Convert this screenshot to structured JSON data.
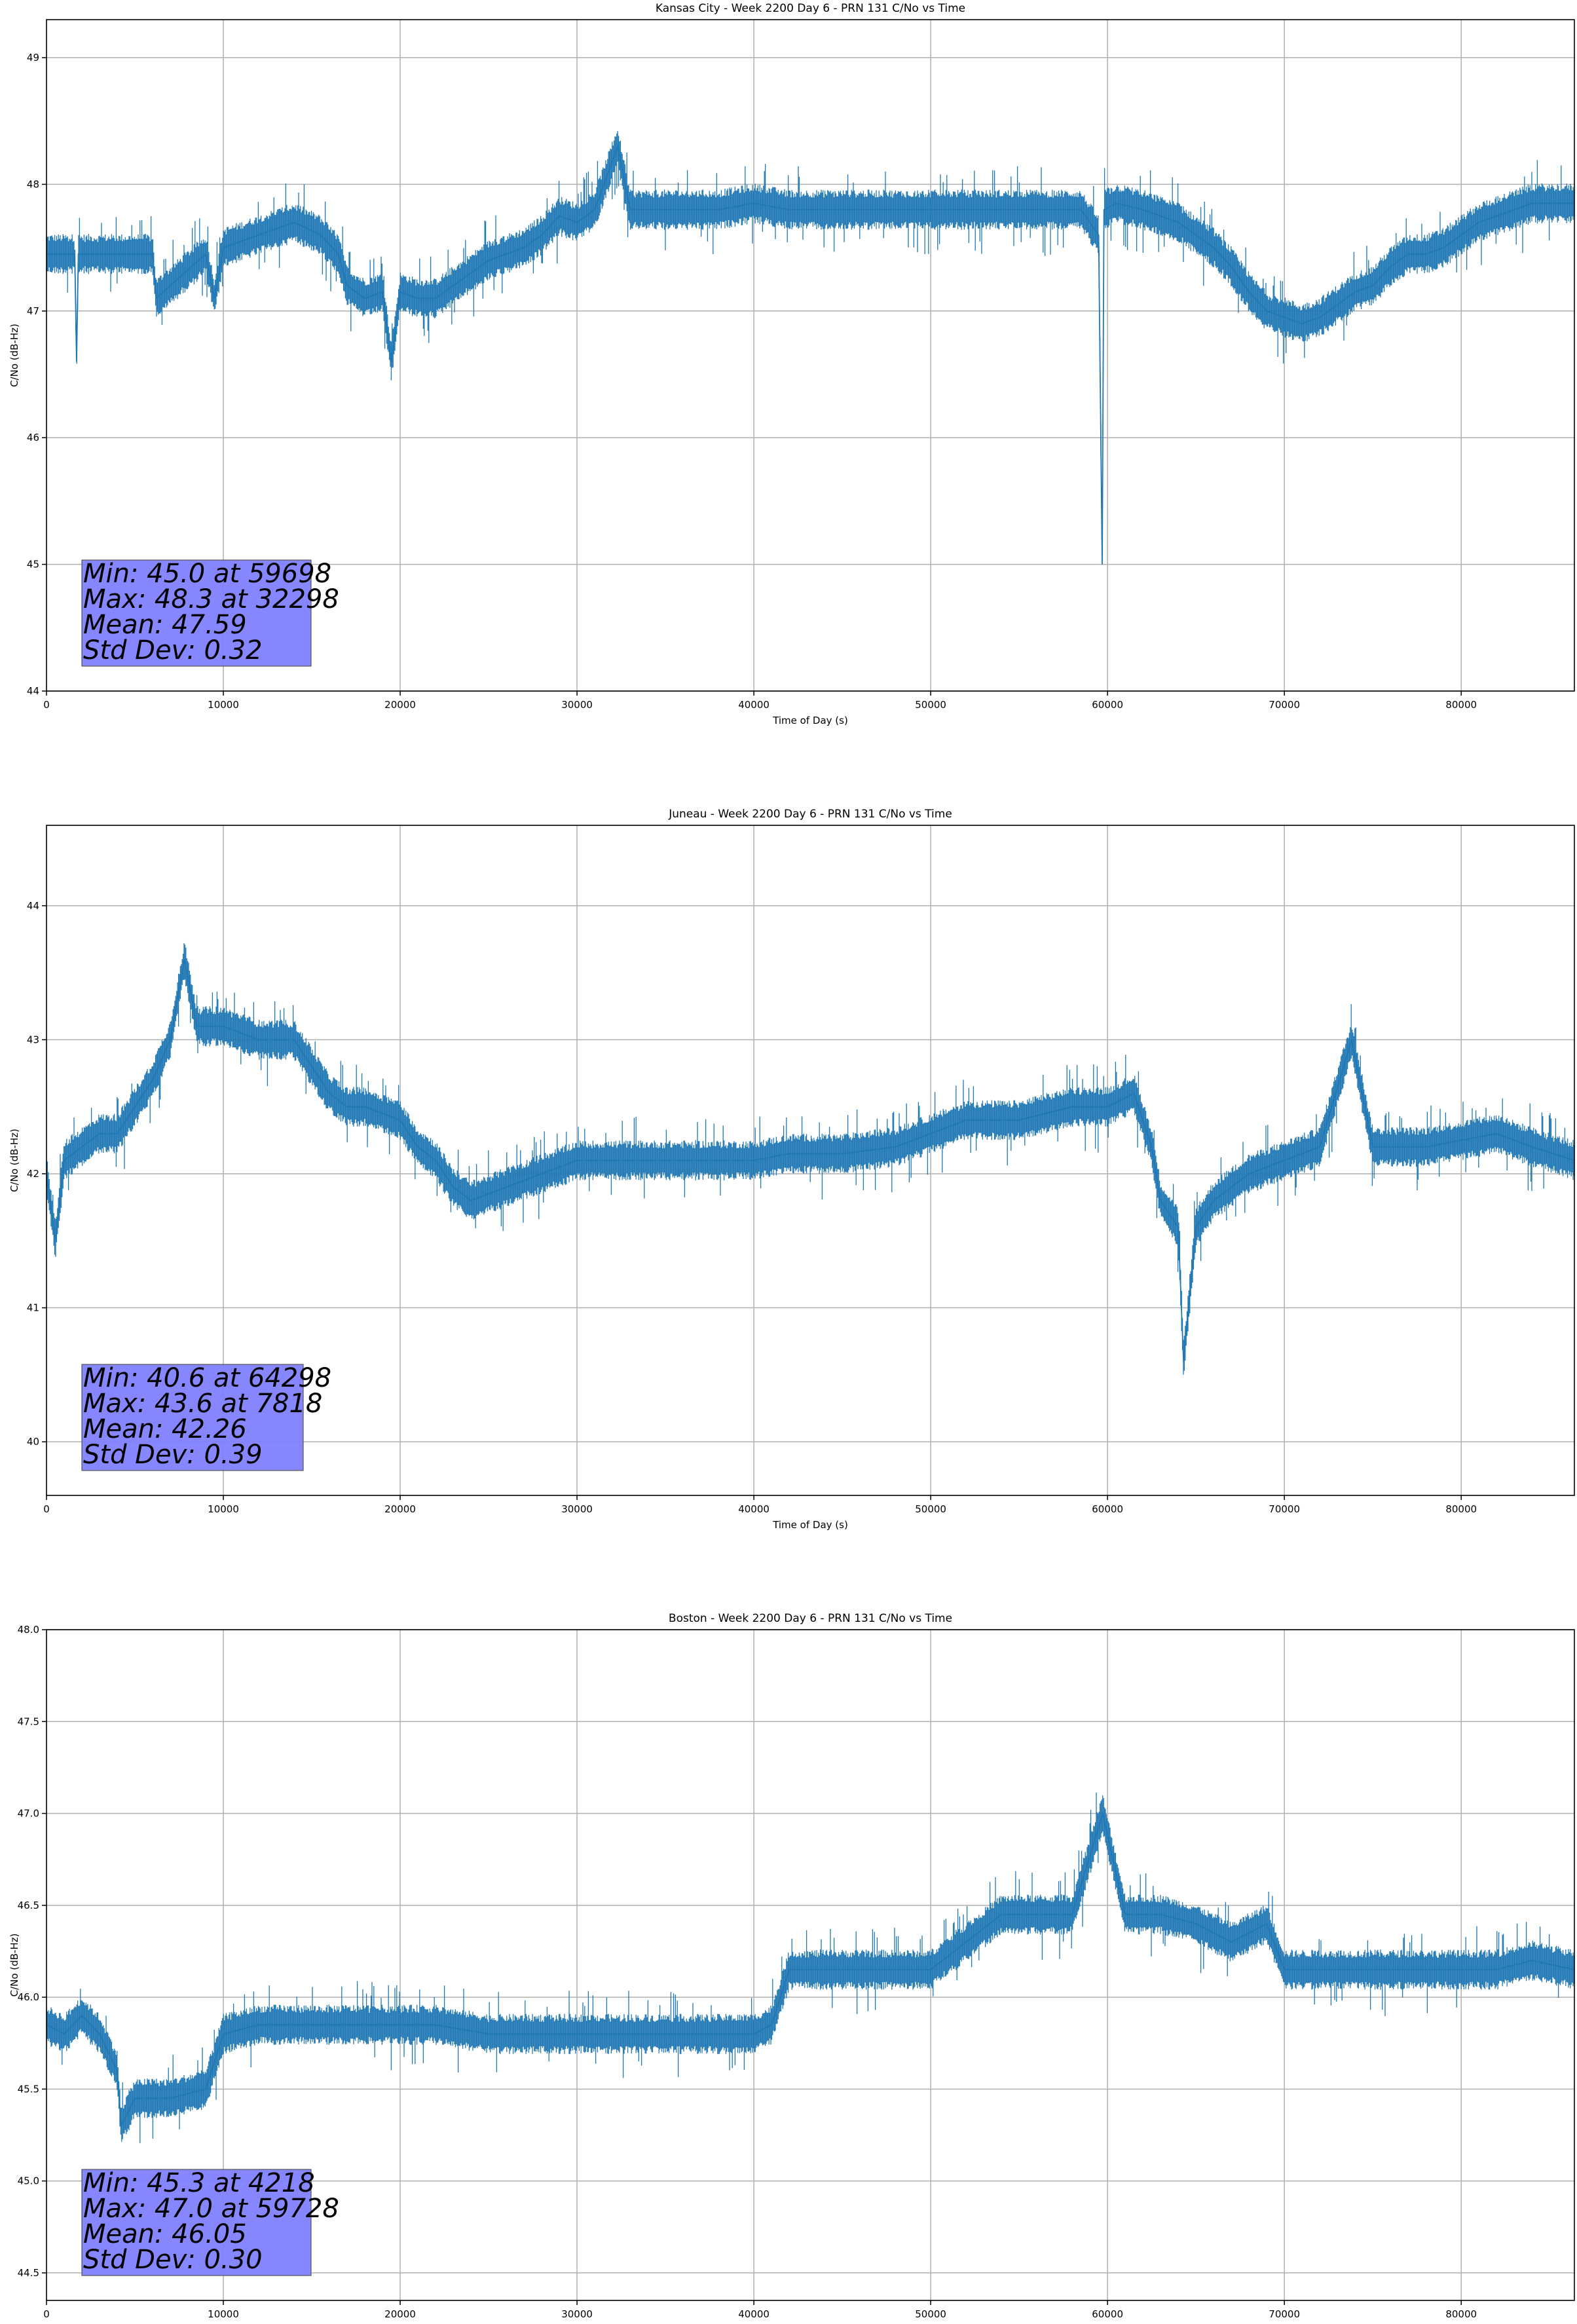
{
  "chart_data": [
    {
      "type": "line",
      "title": "Kansas City - Week 2200 Day 6 - PRN 131 C/No vs Time",
      "xlabel": "Time of Day (s)",
      "ylabel": "C/No (dB-Hz)",
      "xlim": [
        0,
        86400
      ],
      "ylim": [
        44,
        49.3
      ],
      "xticks": [
        "0",
        "10000",
        "20000",
        "30000",
        "40000",
        "50000",
        "60000",
        "70000",
        "80000"
      ],
      "xtick_values": [
        0,
        10000,
        20000,
        30000,
        40000,
        50000,
        60000,
        70000,
        80000
      ],
      "yticks": [
        "44",
        "45",
        "46",
        "47",
        "48",
        "49"
      ],
      "ytick_values": [
        44,
        45,
        46,
        47,
        48,
        49
      ],
      "grid": true,
      "line_color": "#1f77b4",
      "series": [
        {
          "x": [
            0,
            1600,
            1700,
            1800,
            3000,
            6000,
            6200,
            9000,
            9500,
            10000,
            12000,
            14000,
            15500,
            16500,
            17000,
            18000,
            19000,
            19500,
            20000,
            21000,
            22000,
            23000,
            24000,
            25000,
            26000,
            27000,
            28000,
            29000,
            30000,
            31000,
            32300,
            33000,
            35000,
            38000,
            40000,
            42000,
            45000,
            48000,
            50000,
            53000,
            55000,
            57000,
            58500,
            59500,
            59700,
            59800,
            60500,
            62000,
            64000,
            65000,
            66000,
            67000,
            68000,
            69000,
            70000,
            71000,
            72000,
            73000,
            74000,
            75000,
            76000,
            77000,
            78000,
            79000,
            80000,
            81000,
            82000,
            83000,
            84000,
            85000,
            86400
          ],
          "y": [
            47.45,
            47.45,
            46.6,
            47.45,
            47.45,
            47.45,
            47.1,
            47.45,
            47.1,
            47.5,
            47.6,
            47.7,
            47.6,
            47.45,
            47.2,
            47.1,
            47.15,
            46.6,
            47.15,
            47.1,
            47.1,
            47.2,
            47.3,
            47.4,
            47.45,
            47.5,
            47.6,
            47.75,
            47.7,
            47.8,
            48.3,
            47.8,
            47.8,
            47.8,
            47.85,
            47.8,
            47.8,
            47.8,
            47.8,
            47.8,
            47.8,
            47.8,
            47.8,
            47.6,
            45.0,
            47.8,
            47.85,
            47.8,
            47.7,
            47.6,
            47.5,
            47.35,
            47.15,
            47.0,
            46.95,
            46.9,
            46.95,
            47.05,
            47.15,
            47.2,
            47.35,
            47.45,
            47.45,
            47.5,
            47.6,
            47.7,
            47.75,
            47.8,
            47.85,
            47.85,
            47.85
          ]
        }
      ],
      "annotation": [
        "Min: 45.0 at 59698",
        "Max: 48.3 at 32298",
        "Mean: 47.59",
        "Std Dev: 0.32"
      ]
    },
    {
      "type": "line",
      "title": "Juneau - Week 2200 Day 6 - PRN 131 C/No vs Time",
      "xlabel": "Time of Day (s)",
      "ylabel": "C/No (dB-Hz)",
      "xlim": [
        0,
        86400
      ],
      "ylim": [
        39.6,
        44.6
      ],
      "xticks": [
        "0",
        "10000",
        "20000",
        "30000",
        "40000",
        "50000",
        "60000",
        "70000",
        "80000"
      ],
      "xtick_values": [
        0,
        10000,
        20000,
        30000,
        40000,
        50000,
        60000,
        70000,
        80000
      ],
      "yticks": [
        "40",
        "41",
        "42",
        "43",
        "44"
      ],
      "ytick_values": [
        40,
        41,
        42,
        43,
        44
      ],
      "grid": true,
      "line_color": "#1f77b4",
      "series": [
        {
          "x": [
            0,
            500,
            1000,
            2000,
            3000,
            4000,
            5000,
            6000,
            7000,
            7800,
            8500,
            10000,
            12000,
            14000,
            15000,
            16000,
            17000,
            18000,
            20000,
            21000,
            22000,
            23000,
            24000,
            26000,
            28000,
            30000,
            32000,
            35000,
            38000,
            40000,
            42000,
            45000,
            48000,
            50000,
            52000,
            55000,
            58000,
            60000,
            61500,
            62500,
            63000,
            64000,
            64300,
            65000,
            66000,
            68000,
            70000,
            72000,
            73800,
            75000,
            78000,
            80000,
            82000,
            84000,
            86400
          ],
          "y": [
            42.0,
            41.5,
            42.1,
            42.2,
            42.3,
            42.3,
            42.5,
            42.7,
            43.0,
            43.6,
            43.1,
            43.1,
            43.0,
            43.0,
            42.8,
            42.6,
            42.5,
            42.5,
            42.4,
            42.2,
            42.1,
            41.9,
            41.8,
            41.9,
            42.0,
            42.1,
            42.1,
            42.1,
            42.1,
            42.1,
            42.15,
            42.15,
            42.2,
            42.3,
            42.4,
            42.4,
            42.5,
            42.5,
            42.6,
            42.2,
            41.8,
            41.6,
            40.6,
            41.6,
            41.8,
            42.0,
            42.1,
            42.2,
            43.0,
            42.2,
            42.2,
            42.25,
            42.3,
            42.2,
            42.1
          ]
        }
      ],
      "annotation": [
        "Min: 40.6 at 64298",
        "Max: 43.6 at 7818",
        "Mean: 42.26",
        "Std Dev: 0.39"
      ]
    },
    {
      "type": "line",
      "title": "Boston - Week 2200 Day 6 - PRN 131 C/No vs Time",
      "xlabel": "Time of Day (s)",
      "ylabel": "C/No (dB-Hz)",
      "xlim": [
        0,
        86400
      ],
      "ylim": [
        44.35,
        48.0
      ],
      "xticks": [
        "0",
        "10000",
        "20000",
        "30000",
        "40000",
        "50000",
        "60000",
        "70000",
        "80000"
      ],
      "xtick_values": [
        0,
        10000,
        20000,
        30000,
        40000,
        50000,
        60000,
        70000,
        80000
      ],
      "yticks": [
        "44.5",
        "45.0",
        "45.5",
        "46.0",
        "46.5",
        "47.0",
        "47.5",
        "48.0"
      ],
      "ytick_values": [
        44.5,
        45.0,
        45.5,
        46.0,
        46.5,
        47.0,
        47.5,
        48.0
      ],
      "grid": true,
      "line_color": "#1f77b4",
      "series": [
        {
          "x": [
            0,
            1000,
            2000,
            3000,
            4000,
            4218,
            5000,
            7000,
            9000,
            10000,
            12000,
            15000,
            18000,
            20000,
            22000,
            25000,
            28000,
            30000,
            33000,
            36000,
            38000,
            40000,
            41000,
            42000,
            44000,
            46000,
            48000,
            50000,
            52000,
            54000,
            56000,
            58000,
            59728,
            61000,
            63000,
            65000,
            67000,
            69000,
            70000,
            72000,
            75000,
            78000,
            80000,
            82000,
            84000,
            86400
          ],
          "y": [
            45.85,
            45.8,
            45.9,
            45.8,
            45.6,
            45.3,
            45.45,
            45.45,
            45.5,
            45.8,
            45.85,
            45.85,
            45.85,
            45.85,
            45.85,
            45.8,
            45.8,
            45.8,
            45.8,
            45.8,
            45.8,
            45.8,
            45.85,
            46.15,
            46.15,
            46.15,
            46.15,
            46.15,
            46.3,
            46.45,
            46.45,
            46.45,
            47.0,
            46.45,
            46.45,
            46.4,
            46.3,
            46.4,
            46.15,
            46.15,
            46.15,
            46.15,
            46.15,
            46.15,
            46.2,
            46.15
          ]
        }
      ],
      "annotation": [
        "Min: 45.3 at 4218",
        "Max: 47.0 at 59728",
        "Mean: 46.05",
        "Std Dev: 0.30"
      ]
    }
  ]
}
